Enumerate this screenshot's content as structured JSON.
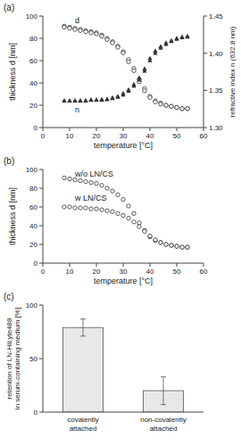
{
  "chart_data": [
    {
      "type": "scatter",
      "title": "(a)",
      "xlabel": "temperature [°C]",
      "ylabel": "thickness d [nm]",
      "y2label": "refractive index n (632.8 nm)",
      "xlim": [
        0,
        60
      ],
      "ylim": [
        0,
        100
      ],
      "y2lim": [
        1.3,
        1.45
      ],
      "xticks": [
        0,
        10,
        20,
        30,
        40,
        50,
        60
      ],
      "yticks": [
        0,
        20,
        40,
        60,
        80,
        100
      ],
      "y2ticks": [
        {
          "value": 1.3,
          "label": "1.30"
        },
        1.35,
        {
          "value": 1.4,
          "label": "1.40"
        },
        1.45
      ],
      "grid": false,
      "annotations": [
        "d",
        "n"
      ],
      "series": [
        {
          "color": "#333333",
          "marker": "open-circle",
          "x": [
            8,
            10,
            12,
            14,
            16,
            18,
            20,
            22,
            24,
            26,
            28,
            30,
            32,
            34,
            36,
            38,
            40,
            42,
            44,
            46,
            48,
            50,
            52,
            54
          ],
          "values": [
            91,
            90,
            89,
            88,
            87,
            86,
            85,
            83,
            80,
            77,
            73,
            68,
            61,
            53,
            43,
            35,
            28,
            24,
            22,
            20,
            19,
            18,
            17,
            17
          ]
        },
        {
          "color": "#333333",
          "marker": "open-circle",
          "x": [
            8,
            10,
            12,
            14,
            16,
            18,
            20,
            22,
            24,
            26,
            28,
            30,
            32,
            34,
            36,
            38,
            40,
            42,
            44,
            46,
            48,
            50,
            52,
            54
          ],
          "values": [
            90,
            89,
            88,
            87,
            86,
            85,
            84,
            82,
            79,
            76,
            72,
            67,
            59,
            51,
            41,
            33,
            27,
            23,
            21,
            20,
            19,
            18,
            17,
            17
          ]
        },
        {
          "color": "#333333",
          "marker": "triangle",
          "axis": "y2",
          "x": [
            8,
            10,
            12,
            14,
            16,
            18,
            20,
            22,
            24,
            26,
            28,
            30,
            32,
            34,
            36,
            38,
            40,
            42,
            44,
            46,
            48,
            50,
            52,
            54
          ],
          "values": [
            1.336,
            1.336,
            1.336,
            1.336,
            1.336,
            1.337,
            1.337,
            1.337,
            1.338,
            1.339,
            1.341,
            1.344,
            1.349,
            1.356,
            1.364,
            1.376,
            1.39,
            1.4,
            1.407,
            1.412,
            1.416,
            1.419,
            1.421,
            1.422
          ]
        },
        {
          "color": "#333333",
          "marker": "triangle",
          "axis": "y2",
          "x": [
            8,
            10,
            12,
            14,
            16,
            18,
            20,
            22,
            24,
            26,
            28,
            30,
            32,
            34,
            36,
            38,
            40,
            42,
            44,
            46,
            48,
            50,
            52,
            54
          ],
          "values": [
            1.336,
            1.336,
            1.336,
            1.336,
            1.336,
            1.337,
            1.337,
            1.338,
            1.338,
            1.34,
            1.342,
            1.346,
            1.351,
            1.358,
            1.367,
            1.379,
            1.393,
            1.403,
            1.409,
            1.414,
            1.417,
            1.42,
            1.422,
            1.423
          ]
        }
      ]
    },
    {
      "type": "scatter",
      "title": "(b)",
      "xlabel": "temperature [°C]",
      "ylabel": "thickness d [nm]",
      "xlim": [
        0,
        60
      ],
      "ylim": [
        0,
        100
      ],
      "xticks": [
        0,
        10,
        20,
        30,
        40,
        50,
        60
      ],
      "yticks": [
        0,
        20,
        40,
        60,
        80,
        100
      ],
      "grid": false,
      "annotations": [
        "w/o LN/CS",
        "w LN/CS"
      ],
      "series": [
        {
          "color": "#333333",
          "marker": "open-circle",
          "x": [
            8,
            10,
            12,
            14,
            16,
            18,
            20,
            22,
            24,
            26,
            28,
            30,
            32,
            34,
            36,
            38,
            40,
            42,
            44,
            46,
            48,
            50,
            52,
            54
          ],
          "values": [
            91,
            90,
            89,
            88,
            87,
            86,
            85,
            83,
            80,
            77,
            73,
            68,
            61,
            53,
            43,
            35,
            28,
            24,
            22,
            20,
            19,
            18,
            17,
            17
          ]
        },
        {
          "color": "#333333",
          "marker": "open-circle",
          "x": [
            8,
            10,
            12,
            14,
            16,
            18,
            20,
            22,
            24,
            26,
            28,
            30,
            32,
            34,
            36,
            38,
            40,
            42,
            44,
            46,
            48,
            50,
            52,
            54
          ],
          "values": [
            60,
            60,
            59,
            59,
            59,
            58,
            58,
            57,
            56,
            55,
            53,
            51,
            48,
            44,
            39,
            34,
            29,
            25,
            22,
            20,
            19,
            18,
            17,
            17
          ]
        }
      ]
    },
    {
      "type": "bar",
      "title": "(c)",
      "ylabel": "retention of LN-HiLyte488\nin serum-containing medium [%]",
      "categories": [
        "covalently\nattached",
        "non-covalently\nattached"
      ],
      "values": [
        79,
        20
      ],
      "errors": [
        8,
        13
      ],
      "color": "#e8e8e8",
      "ylim": [
        0,
        100
      ],
      "yticks": [
        0,
        50,
        100
      ],
      "grid": false
    }
  ]
}
